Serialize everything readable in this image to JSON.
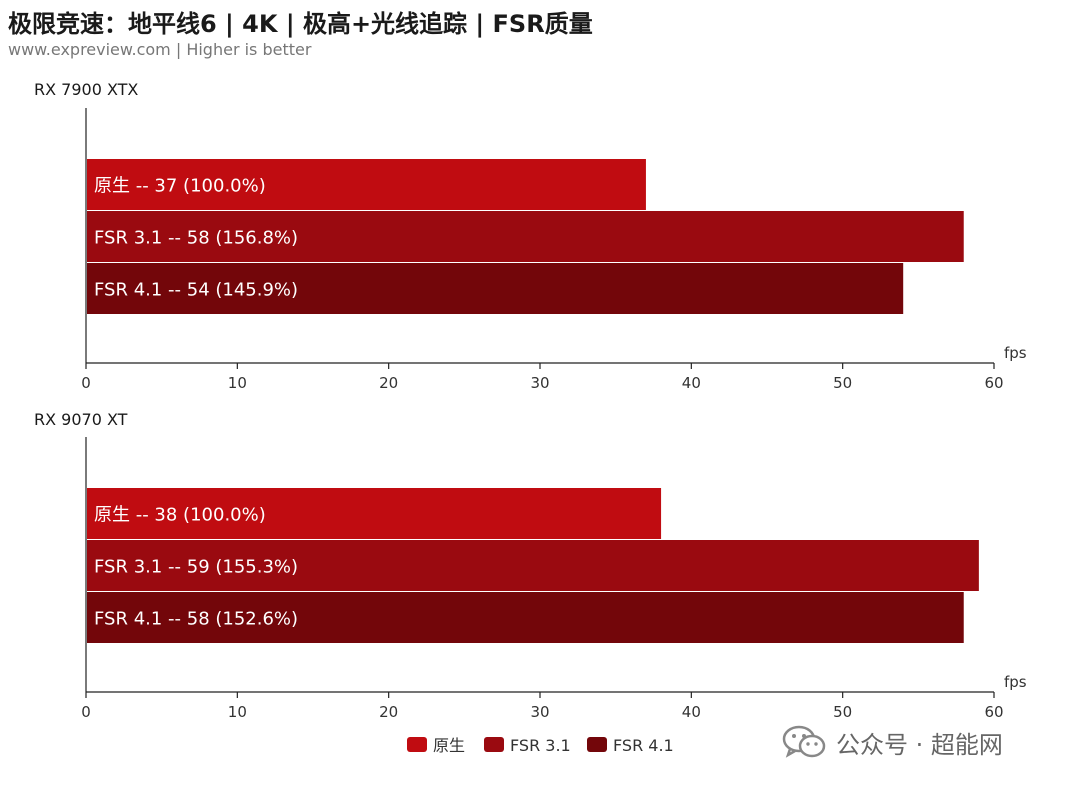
{
  "header": {
    "title": "极限竞速：地平线6 | 4K | 极高+光线追踪 | FSR质量",
    "subtitle": "www.expreview.com | Higher is better"
  },
  "chart_data": [
    {
      "type": "bar",
      "orientation": "horizontal",
      "group_label": "RX 7900 XTX",
      "x_unit": "fps",
      "xlim": [
        0,
        60
      ],
      "x_ticks": [
        0,
        10,
        20,
        30,
        40,
        50,
        60
      ],
      "bars": [
        {
          "series": "原生",
          "value": 37,
          "label": "原生  --  37 (100.0%)"
        },
        {
          "series": "FSR 3.1",
          "value": 58,
          "label": "FSR 3.1  --  58 (156.8%)"
        },
        {
          "series": "FSR 4.1",
          "value": 54,
          "label": "FSR 4.1  --  54 (145.9%)"
        }
      ]
    },
    {
      "type": "bar",
      "orientation": "horizontal",
      "group_label": "RX 9070 XT",
      "x_unit": "fps",
      "xlim": [
        0,
        60
      ],
      "x_ticks": [
        0,
        10,
        20,
        30,
        40,
        50,
        60
      ],
      "bars": [
        {
          "series": "原生",
          "value": 38,
          "label": "原生  --  38 (100.0%)"
        },
        {
          "series": "FSR 3.1",
          "value": 59,
          "label": "FSR 3.1  --  59 (155.3%)"
        },
        {
          "series": "FSR 4.1",
          "value": 58,
          "label": "FSR 4.1  --  58 (152.6%)"
        }
      ]
    }
  ],
  "legend": {
    "position": "bottom-center",
    "items": [
      {
        "name": "原生",
        "color": "#c00c11"
      },
      {
        "name": "FSR 3.1",
        "color": "#9a0a10"
      },
      {
        "name": "FSR 4.1",
        "color": "#73060a"
      }
    ]
  },
  "watermark": {
    "text": "公众号 · 超能网",
    "icon": "wechat-icon"
  }
}
